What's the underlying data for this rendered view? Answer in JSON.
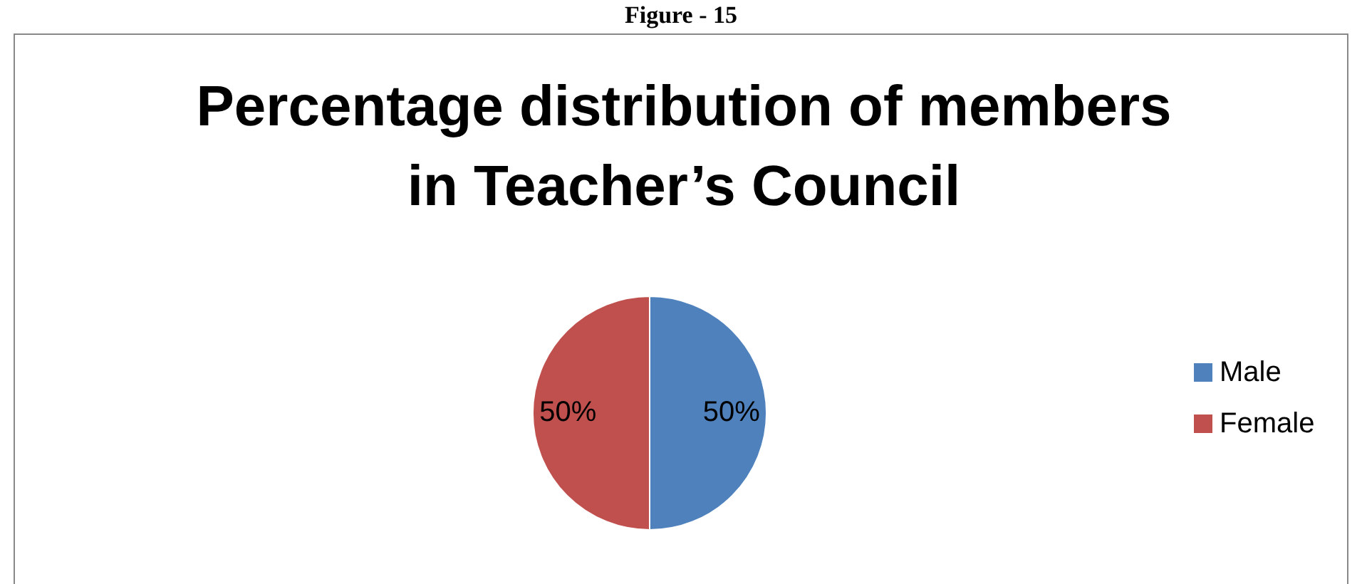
{
  "chart_data": {
    "type": "pie",
    "title": "Percentage distribution of members in Teacher’s Council",
    "annotations": [
      "Figure - 15"
    ],
    "categories": [
      "Male",
      "Female"
    ],
    "values": [
      50,
      50
    ],
    "colors": [
      "#4f81bd",
      "#c0504d"
    ],
    "value_labels": [
      "50%",
      "50%"
    ],
    "legend": "right"
  }
}
